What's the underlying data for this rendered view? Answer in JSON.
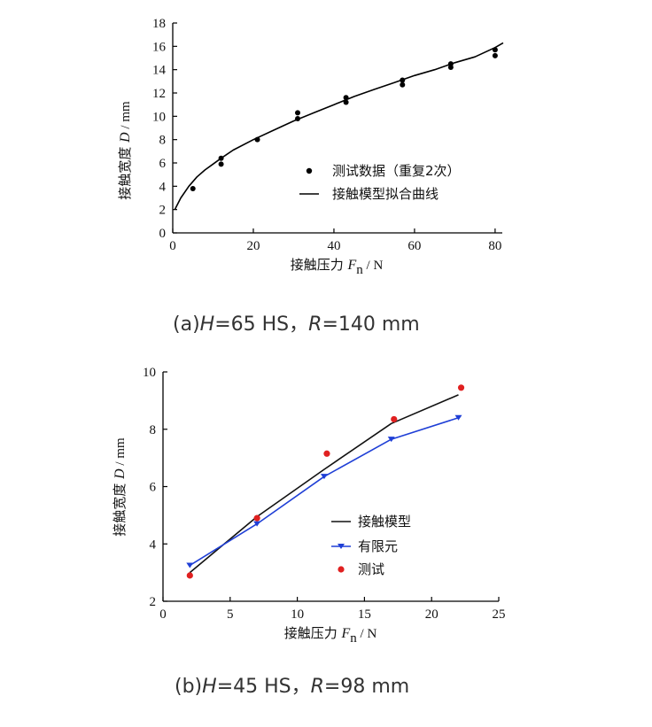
{
  "chart_data": [
    {
      "type": "scatter",
      "caption": {
        "prefix": "(a)",
        "h_var": "H",
        "h_val": "=65 HS，",
        "r_var": "R",
        "r_val": "=140 mm"
      },
      "xlabel": {
        "text": "接触压力",
        "var": "F",
        "sub": "n",
        "unit": " / N"
      },
      "ylabel": {
        "text": "接触宽度",
        "var": "D",
        "unit": " / mm"
      },
      "xlim": [
        0,
        82
      ],
      "ylim": [
        0,
        18
      ],
      "xticks": [
        "0",
        "20",
        "40",
        "60",
        "80"
      ],
      "yticks": [
        "0",
        "2",
        "4",
        "6",
        "8",
        "10",
        "12",
        "14",
        "16",
        "18"
      ],
      "series": [
        {
          "name": "测试数据（重复2次）",
          "kind": "scatter",
          "color": "#000000",
          "x": [
            5,
            12,
            12,
            21,
            31,
            31,
            43,
            43,
            57,
            57,
            69,
            69,
            80,
            80
          ],
          "y": [
            3.8,
            6.4,
            5.9,
            8.0,
            10.3,
            9.8,
            11.6,
            11.2,
            13.1,
            12.7,
            14.5,
            14.2,
            15.7,
            15.2
          ]
        },
        {
          "name": "接触模型拟合曲线",
          "kind": "line",
          "color": "#000000",
          "x": [
            0.5,
            2,
            4,
            6,
            8,
            10,
            12,
            15,
            20,
            25,
            30,
            35,
            40,
            45,
            50,
            55,
            60,
            65,
            70,
            75,
            80,
            82
          ],
          "y": [
            2.0,
            3.0,
            4.0,
            4.8,
            5.4,
            5.9,
            6.4,
            7.1,
            8.0,
            8.8,
            9.6,
            10.3,
            11.0,
            11.7,
            12.3,
            12.9,
            13.5,
            14.0,
            14.6,
            15.1,
            15.9,
            16.3
          ]
        }
      ]
    },
    {
      "type": "line",
      "caption": {
        "prefix": "(b)",
        "h_var": "H",
        "h_val": "=45 HS，",
        "r_var": "R",
        "r_val": "=98 mm"
      },
      "xlabel": {
        "text": "接触压力",
        "var": "F",
        "sub": "n",
        "unit": " / N"
      },
      "ylabel": {
        "text": "接触宽度",
        "var": "D",
        "unit": " / mm"
      },
      "xlim": [
        0,
        25
      ],
      "ylim": [
        2,
        10
      ],
      "xticks": [
        "0",
        "5",
        "10",
        "15",
        "20",
        "25"
      ],
      "yticks": [
        "2",
        "4",
        "6",
        "8",
        "10"
      ],
      "series": [
        {
          "name": "接触模型",
          "kind": "line",
          "color": "#111111",
          "x": [
            2,
            7,
            12,
            17,
            22
          ],
          "y": [
            3.0,
            4.95,
            6.6,
            8.2,
            9.2
          ]
        },
        {
          "name": "有限元",
          "kind": "line-marker",
          "color": "#1f3fd6",
          "x": [
            2,
            7,
            12,
            17,
            22
          ],
          "y": [
            3.25,
            4.7,
            6.35,
            7.65,
            8.4
          ]
        },
        {
          "name": "测试",
          "kind": "scatter",
          "color": "#e02020",
          "x": [
            2,
            7,
            12.2,
            17.2,
            22.2
          ],
          "y": [
            2.9,
            4.9,
            7.15,
            8.35,
            9.45
          ]
        }
      ]
    }
  ]
}
